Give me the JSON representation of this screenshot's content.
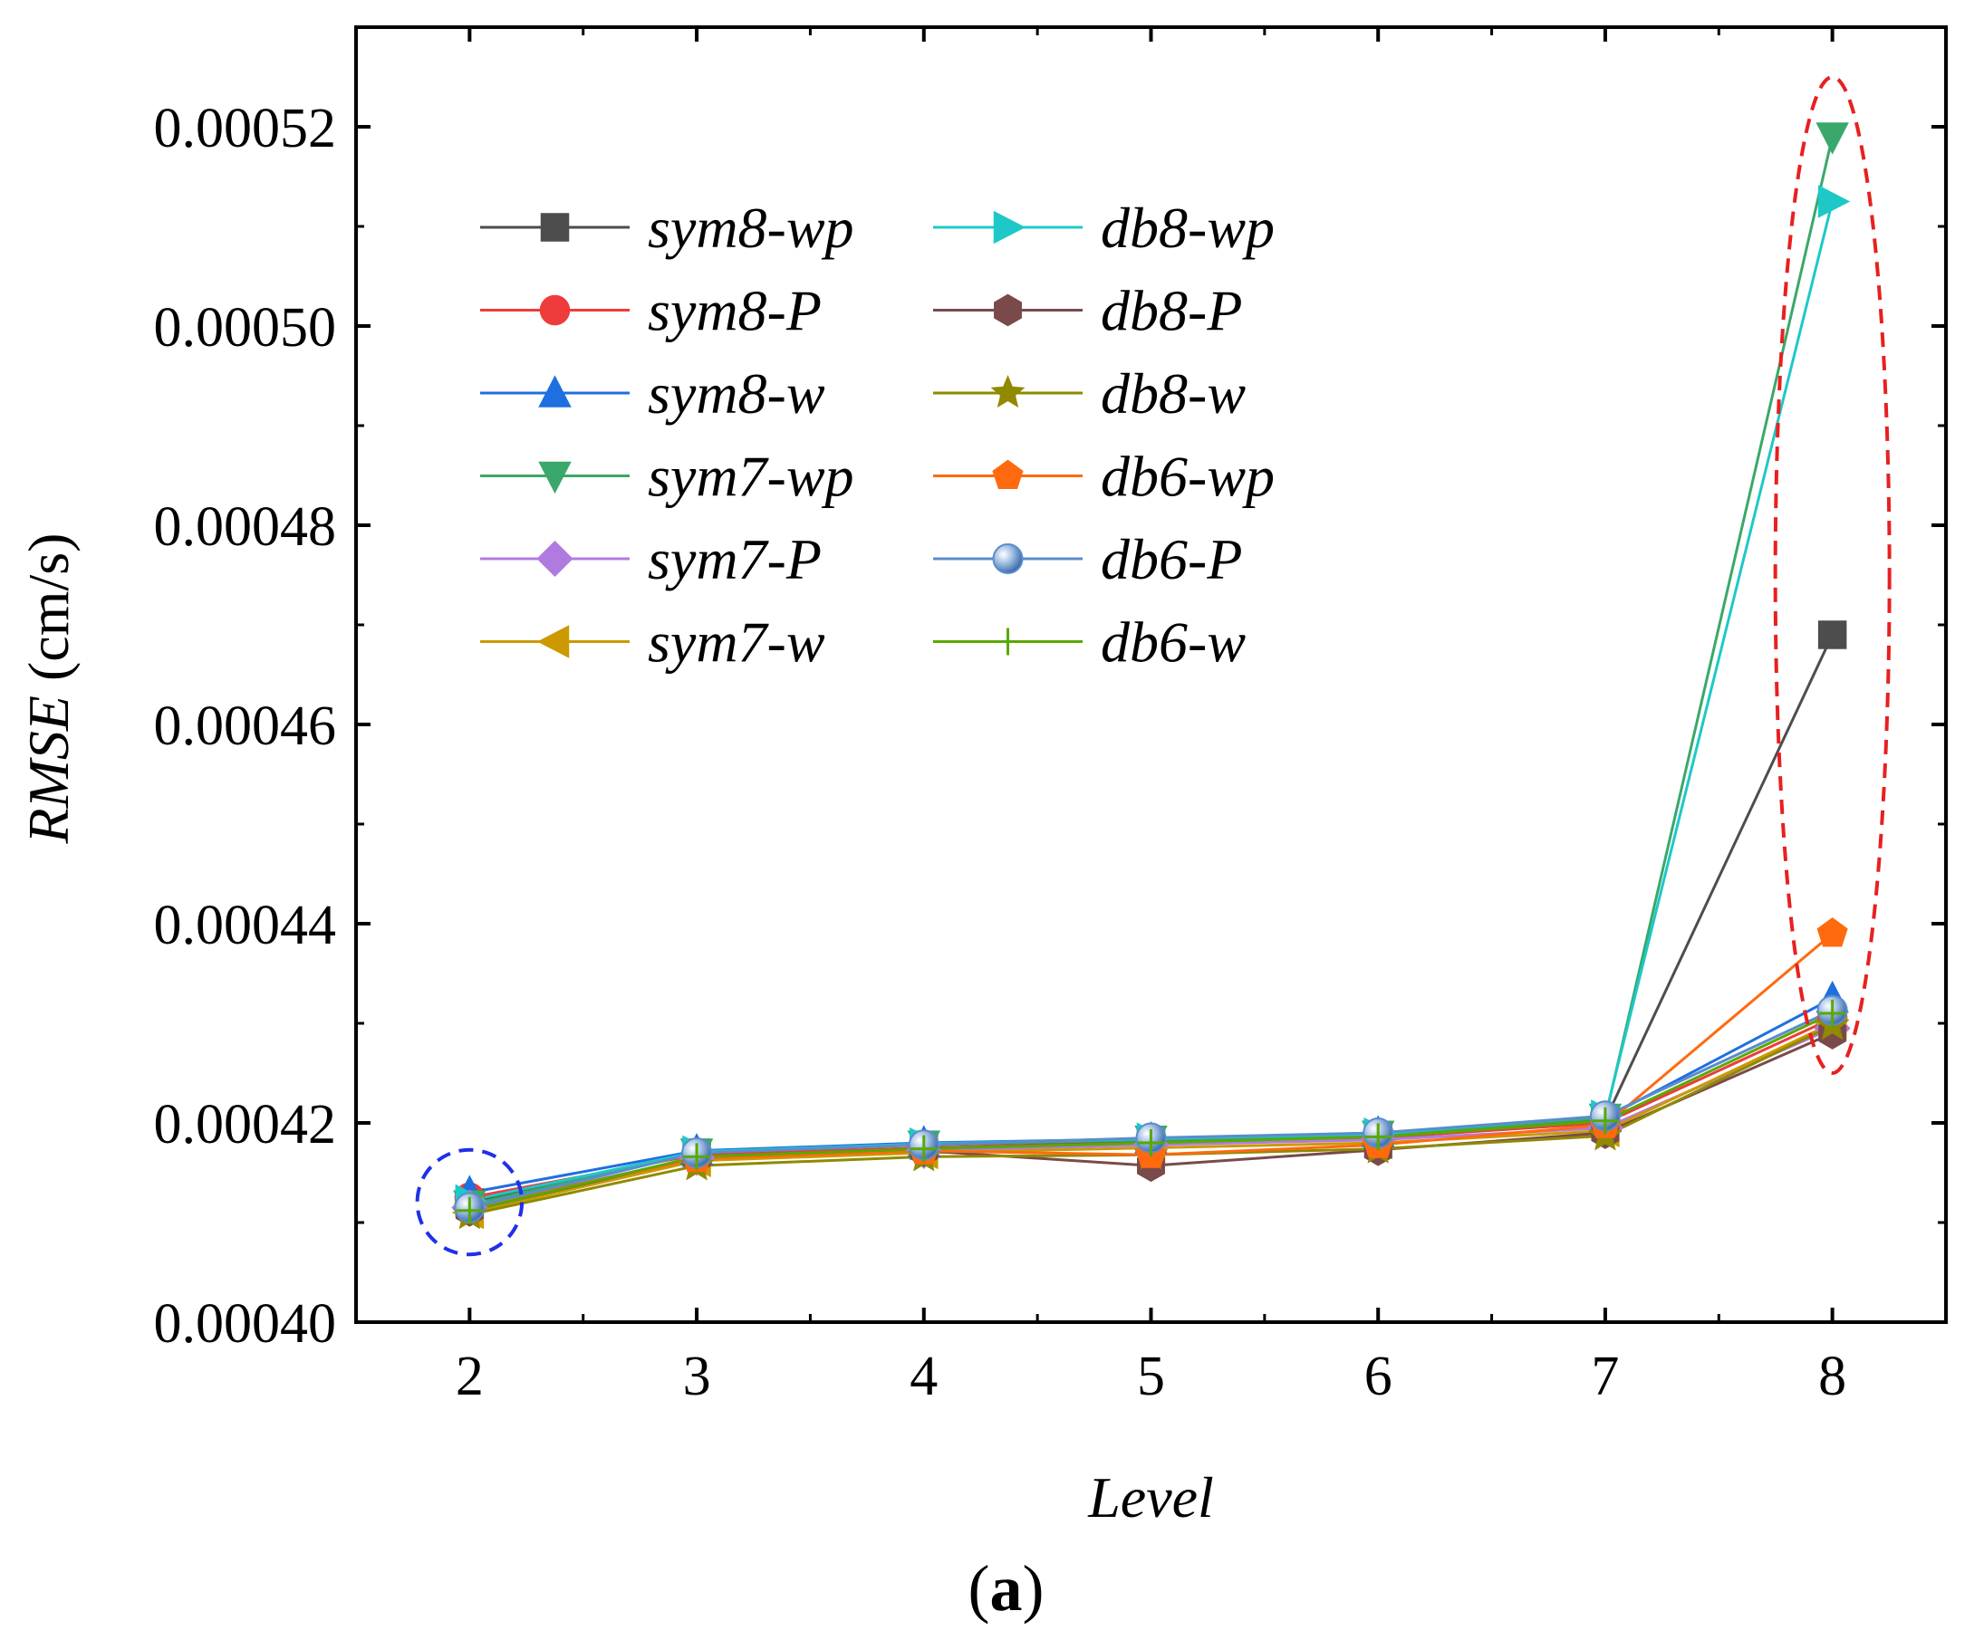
{
  "chart_data": {
    "type": "line",
    "title": "",
    "xlabel": "Level",
    "ylabel_italic": "RMSE",
    "ylabel_unit": " (cm/s)",
    "caption_open": "(",
    "caption_letter": "a",
    "caption_close": ")",
    "x": [
      2,
      3,
      4,
      5,
      6,
      7,
      8
    ],
    "xlim": [
      1.5,
      8.5
    ],
    "ylim": [
      0.0004,
      0.00053
    ],
    "xticks": [
      "2",
      "3",
      "4",
      "5",
      "6",
      "7",
      "8"
    ],
    "yticks": [
      0.0004,
      0.00042,
      0.00044,
      0.00046,
      0.00048,
      0.0005,
      0.00052
    ],
    "ytick_labels": [
      "0.00040",
      "0.00042",
      "0.00044",
      "0.00046",
      "0.00048",
      "0.00050",
      "0.00052"
    ],
    "legend_position": "upper-left",
    "series": [
      {
        "name": "sym8-wp",
        "color": "#4d4d4d",
        "marker": "square",
        "values": [
          0.000412,
          0.000417,
          0.0004178,
          0.0004182,
          0.0004187,
          0.0004203,
          0.000469
        ]
      },
      {
        "name": "sym8-P",
        "color": "#ef3b3b",
        "marker": "circle",
        "values": [
          0.0004125,
          0.0004168,
          0.0004175,
          0.000418,
          0.0004185,
          0.00042,
          0.0004305
        ]
      },
      {
        "name": "sym8-w",
        "color": "#1f6fe0",
        "marker": "triangle-up",
        "values": [
          0.000413,
          0.0004172,
          0.000418,
          0.0004184,
          0.000419,
          0.0004205,
          0.0004325
        ]
      },
      {
        "name": "sym7-wp",
        "color": "#3aa86a",
        "marker": "triangle-down",
        "values": [
          0.0004118,
          0.000417,
          0.0004178,
          0.0004183,
          0.0004188,
          0.0004205,
          0.000519
        ]
      },
      {
        "name": "sym7-P",
        "color": "#b07be0",
        "marker": "diamond",
        "values": [
          0.0004115,
          0.0004165,
          0.0004172,
          0.0004178,
          0.0004183,
          0.0004195,
          0.0004295
        ]
      },
      {
        "name": "sym7-w",
        "color": "#cc9900",
        "marker": "triangle-left",
        "values": [
          0.000411,
          0.0004162,
          0.000417,
          0.0004175,
          0.000418,
          0.0004192,
          0.00043
        ]
      },
      {
        "name": "db8-wp",
        "color": "#1ec8c8",
        "marker": "triangle-right",
        "values": [
          0.0004122,
          0.0004171,
          0.0004179,
          0.0004184,
          0.0004189,
          0.0004207,
          0.0005125
        ]
      },
      {
        "name": "db8-P",
        "color": "#7a4a4a",
        "marker": "hexagon",
        "values": [
          0.0004112,
          0.0004165,
          0.0004172,
          0.0004157,
          0.0004173,
          0.000419,
          0.000429
        ]
      },
      {
        "name": "db8-w",
        "color": "#8f8a00",
        "marker": "star",
        "values": [
          0.0004108,
          0.0004157,
          0.0004166,
          0.0004168,
          0.0004174,
          0.0004187,
          0.0004298
        ]
      },
      {
        "name": "db6-wp",
        "color": "#ff6a0f",
        "marker": "pentagon",
        "values": [
          0.0004115,
          0.0004164,
          0.0004172,
          0.0004168,
          0.0004178,
          0.0004198,
          0.000439
        ]
      },
      {
        "name": "db6-P",
        "color": "#5b8ccc",
        "marker": "sphere",
        "values": [
          0.0004115,
          0.000417,
          0.0004178,
          0.0004185,
          0.000419,
          0.0004207,
          0.0004313
        ]
      },
      {
        "name": "db6-w",
        "color": "#5aa800",
        "marker": "plus",
        "values": [
          0.0004112,
          0.0004166,
          0.0004174,
          0.000418,
          0.0004186,
          0.0004202,
          0.000431
        ]
      }
    ],
    "annotations": [
      {
        "shape": "dashed-ellipse",
        "color": "#e82020",
        "x": 8,
        "y_range": [
          0.000425,
          0.000525
        ]
      },
      {
        "shape": "dashed-circle",
        "color": "#2030e8",
        "x": 2,
        "y_range": [
          0.0004068,
          0.0004173
        ]
      }
    ]
  }
}
